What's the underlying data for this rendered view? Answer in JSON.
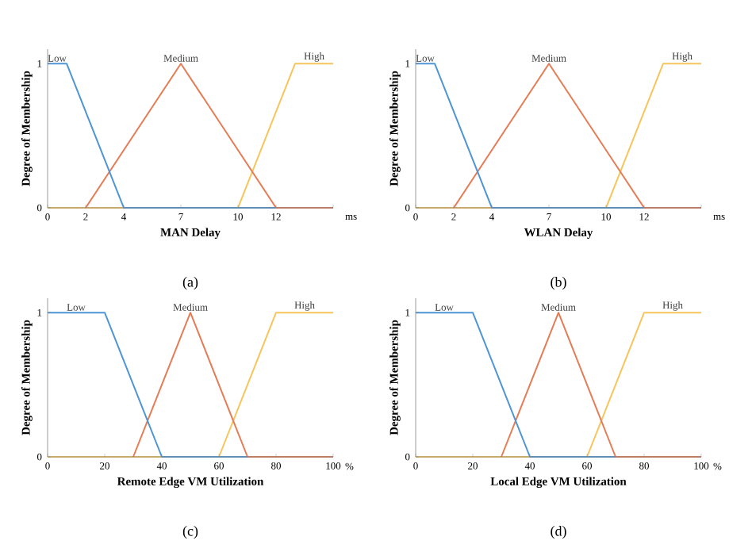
{
  "chart_data": [
    {
      "type": "line",
      "xlabel": "MAN Delay",
      "ylabel": "Degree of Membership",
      "xlim": [
        0,
        15
      ],
      "xticks": [
        0,
        2,
        4,
        7,
        10,
        12,
        {
          "value": 15,
          "label": null
        }
      ],
      "ylim": [
        0,
        1.1
      ],
      "yticks": [
        0,
        1
      ],
      "annotations": [
        "ms",
        "(a)"
      ],
      "series": [
        {
          "name": "High",
          "color": "#f7c55c",
          "x": [
            0,
            10,
            13,
            15
          ],
          "values": [
            0,
            0,
            1,
            1
          ]
        },
        {
          "name": "Medium",
          "color": "#e57c55",
          "x": [
            2,
            7,
            12,
            15
          ],
          "values": [
            0,
            1,
            0,
            0
          ]
        },
        {
          "name": "Low",
          "color": "#4f95d6",
          "x": [
            0,
            1,
            4,
            12
          ],
          "values": [
            1,
            1,
            0,
            0
          ]
        }
      ]
    },
    {
      "type": "line",
      "xlabel": "WLAN Delay",
      "ylabel": "Degree of Membership",
      "xlim": [
        0,
        15
      ],
      "xticks": [
        0,
        2,
        4,
        7,
        10,
        12,
        {
          "value": 15,
          "label": null
        }
      ],
      "ylim": [
        0,
        1.1
      ],
      "yticks": [
        0,
        1
      ],
      "annotations": [
        "ms",
        "(b)"
      ],
      "series": [
        {
          "name": "High",
          "color": "#f7c55c",
          "x": [
            0,
            10,
            13,
            15
          ],
          "values": [
            0,
            0,
            1,
            1
          ]
        },
        {
          "name": "Medium",
          "color": "#e57c55",
          "x": [
            2,
            7,
            12,
            15
          ],
          "values": [
            0,
            1,
            0,
            0
          ]
        },
        {
          "name": "Low",
          "color": "#4f95d6",
          "x": [
            0,
            1,
            4,
            12
          ],
          "values": [
            1,
            1,
            0,
            0
          ]
        }
      ]
    },
    {
      "type": "line",
      "xlabel": "Remote Edge VM Utilization",
      "ylabel": "Degree of Membership",
      "xlim": [
        0,
        100
      ],
      "xticks": [
        0,
        20,
        40,
        60,
        80,
        100
      ],
      "ylim": [
        0,
        1.1
      ],
      "yticks": [
        0,
        1
      ],
      "annotations": [
        "%",
        "(c)"
      ],
      "series": [
        {
          "name": "High",
          "color": "#f7c55c",
          "x": [
            0,
            60,
            80,
            100
          ],
          "values": [
            0,
            0,
            1,
            1
          ]
        },
        {
          "name": "Medium",
          "color": "#e57c55",
          "x": [
            30,
            50,
            70,
            100
          ],
          "values": [
            0,
            1,
            0,
            0
          ]
        },
        {
          "name": "Low",
          "color": "#4f95d6",
          "x": [
            0,
            20,
            40,
            70
          ],
          "values": [
            1,
            1,
            0,
            0
          ]
        }
      ]
    },
    {
      "type": "line",
      "xlabel": "Local Edge VM Utilization",
      "ylabel": "Degree of Membership",
      "xlim": [
        0,
        100
      ],
      "xticks": [
        0,
        20,
        40,
        60,
        80,
        100
      ],
      "ylim": [
        0,
        1.1
      ],
      "yticks": [
        0,
        1
      ],
      "annotations": [
        "%",
        "(d)"
      ],
      "series": [
        {
          "name": "High",
          "color": "#f7c55c",
          "x": [
            0,
            60,
            80,
            100
          ],
          "values": [
            0,
            0,
            1,
            1
          ]
        },
        {
          "name": "Medium",
          "color": "#e57c55",
          "x": [
            30,
            50,
            70,
            100
          ],
          "values": [
            0,
            1,
            0,
            0
          ]
        },
        {
          "name": "Low",
          "color": "#4f95d6",
          "x": [
            0,
            20,
            40,
            70
          ],
          "values": [
            1,
            1,
            0,
            0
          ]
        }
      ]
    }
  ]
}
